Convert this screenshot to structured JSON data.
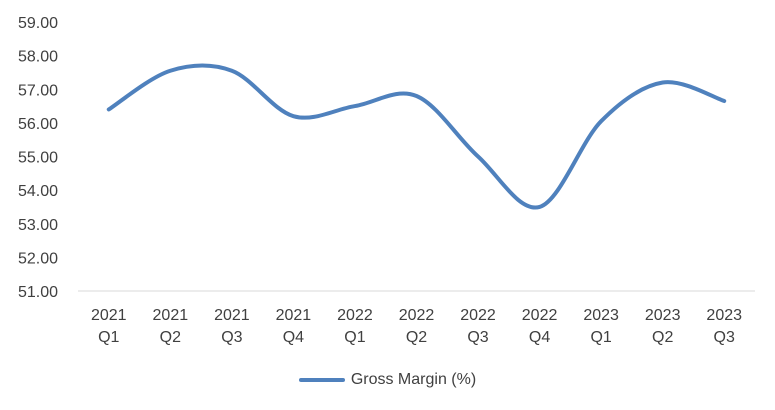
{
  "chart_data": {
    "type": "line",
    "categories": [
      [
        "2021",
        "Q1"
      ],
      [
        "2021",
        "Q2"
      ],
      [
        "2021",
        "Q3"
      ],
      [
        "2021",
        "Q4"
      ],
      [
        "2022",
        "Q1"
      ],
      [
        "2022",
        "Q2"
      ],
      [
        "2022",
        "Q3"
      ],
      [
        "2022",
        "Q4"
      ],
      [
        "2023",
        "Q1"
      ],
      [
        "2023",
        "Q2"
      ],
      [
        "2023",
        "Q3"
      ]
    ],
    "series": [
      {
        "name": "Gross Margin (%)",
        "color": "#4F81BD",
        "values": [
          56.4,
          57.55,
          57.55,
          56.2,
          56.5,
          56.8,
          55.0,
          53.5,
          56.05,
          57.2,
          56.65
        ]
      }
    ],
    "yticks": [
      "51.00",
      "52.00",
      "53.00",
      "54.00",
      "55.00",
      "56.00",
      "57.00",
      "58.00",
      "59.00"
    ],
    "ylim": [
      51,
      59
    ],
    "grid": false,
    "legend_position": "bottom",
    "title": "",
    "xlabel": "",
    "ylabel": ""
  }
}
